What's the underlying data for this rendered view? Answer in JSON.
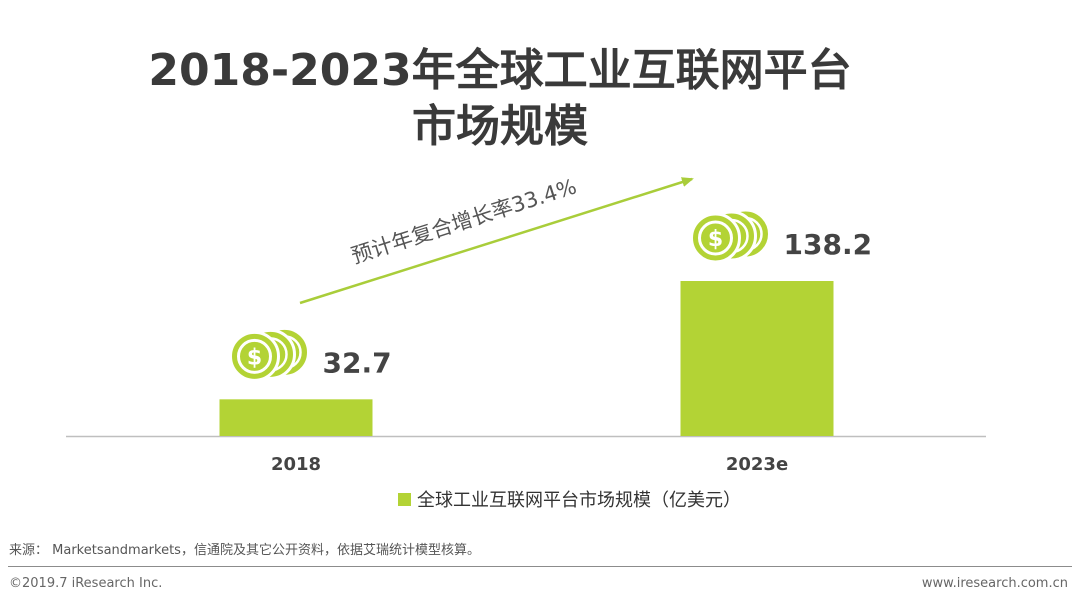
{
  "title_line1": "2018-2023年全球工业互联网平台",
  "title_line2": "市场规模",
  "growth_annotation": "预计年复合增长率33.4%",
  "legend_label": "全球工业互联网平台市场规模（亿美元）",
  "source": "来源： Marketsandmarkets，信通院及其它公开资料，依据艾瑞统计模型核算。",
  "footer_left": "©2019.7 iResearch Inc.",
  "footer_right": "www.iresearch.com.cn",
  "colors": {
    "bar": "#b3d335",
    "arrow": "#a9cd3a",
    "axis": "#bfbfbf"
  },
  "chart_data": {
    "type": "bar",
    "categories": [
      "2018",
      "2023e"
    ],
    "series": [
      {
        "name": "全球工业互联网平台市场规模（亿美元）",
        "values": [
          32.7,
          138.2
        ]
      }
    ],
    "value_labels": [
      "32.7",
      "138.2"
    ],
    "ylim": [
      0,
      150
    ],
    "grid": false,
    "legend_position": "bottom",
    "icons": [
      "dollar-coin-icon",
      "dollar-coin-icon"
    ]
  }
}
